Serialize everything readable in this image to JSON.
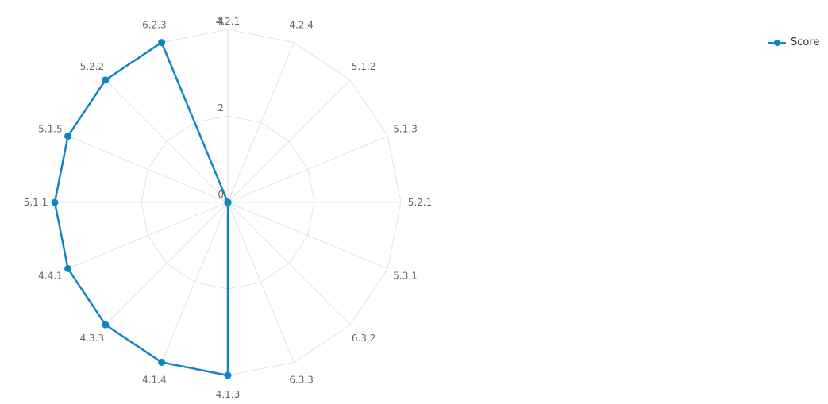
{
  "chart_data": {
    "type": "radar",
    "categories": [
      "4.2.1",
      "4.2.4",
      "5.1.2",
      "5.1.3",
      "5.2.1",
      "5.3.1",
      "6.3.2",
      "6.3.3",
      "4.1.3",
      "4.1.4",
      "4.3.3",
      "4.4.1",
      "5.1.1",
      "5.1.5",
      "5.2.2",
      "6.2.3"
    ],
    "series": [
      {
        "name": "Score",
        "color": "#0e86c3",
        "values": [
          0,
          0,
          0,
          0,
          0,
          0,
          0,
          0,
          4,
          4,
          4,
          4,
          4,
          4,
          4,
          4
        ]
      }
    ],
    "rlim": [
      0,
      4
    ],
    "r_ticks": [
      "0",
      "2",
      "4"
    ],
    "grid": true,
    "legend_position": "top-right",
    "grid_color": "#e3e3e3",
    "label_color": "#666666"
  },
  "legend": {
    "label": "Score"
  }
}
